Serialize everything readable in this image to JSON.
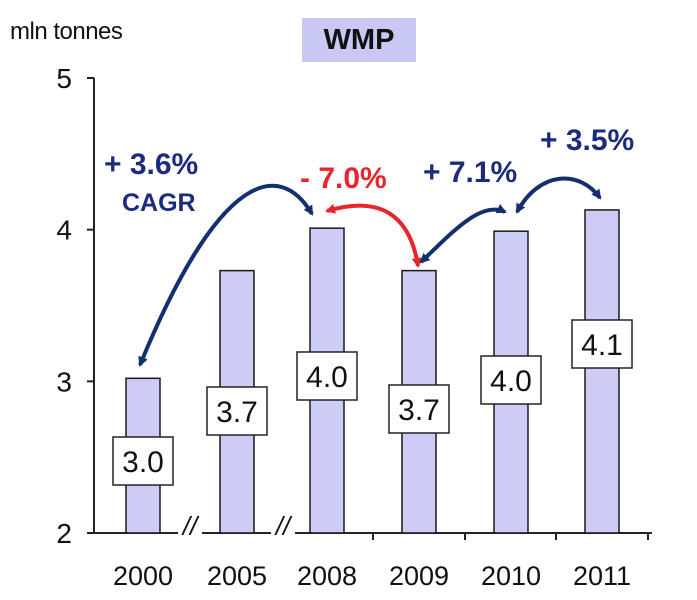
{
  "chart_data": {
    "type": "bar",
    "title": "WMP",
    "ylabel": "mln tonnes",
    "categories": [
      "2000",
      "2005",
      "2008",
      "2009",
      "2010",
      "2011"
    ],
    "values": [
      3.0,
      3.7,
      4.0,
      3.7,
      4.0,
      4.1
    ],
    "bar_heights": [
      3.02,
      3.73,
      4.01,
      3.73,
      3.99,
      4.13
    ],
    "ylim": [
      2,
      5
    ],
    "yticks": [
      "2",
      "3",
      "4",
      "5"
    ],
    "axis_breaks": [
      "//",
      "//"
    ],
    "grid": false,
    "annotations": [
      {
        "text": "+ 3.6%",
        "color": "#1c2b80"
      },
      {
        "text": "CAGR",
        "color": "#1c2b80"
      },
      {
        "text": "- 7.0%",
        "color": "#e8242c"
      },
      {
        "text": "+ 7.1%",
        "color": "#1c2b80"
      },
      {
        "text": "+ 3.5%",
        "color": "#1c2b80"
      }
    ],
    "colors": {
      "bar_fill": "#ccccf6",
      "bar_stroke": "#1a1a1a",
      "up_arrow": "#13306e",
      "down_arrow": "#e8242c"
    }
  }
}
